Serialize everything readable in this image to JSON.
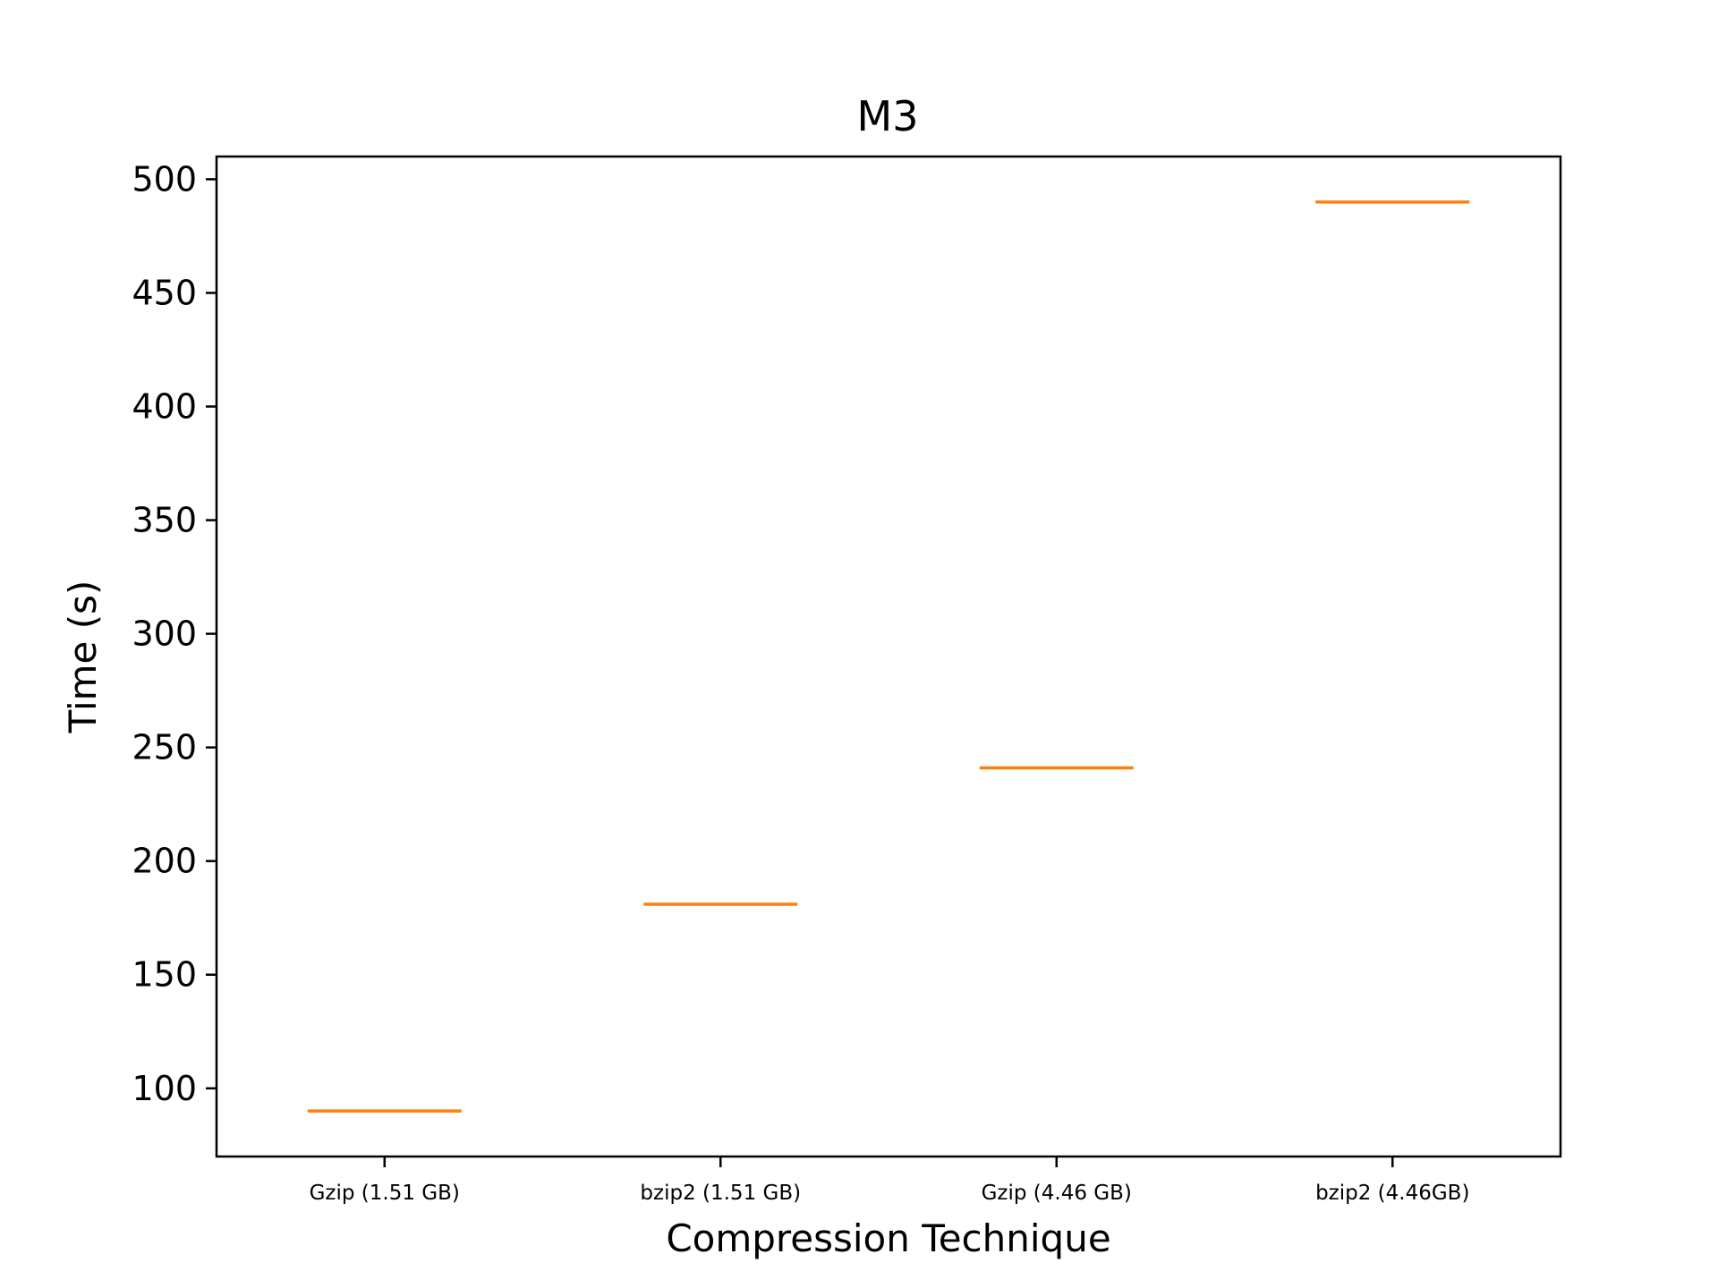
{
  "chart_data": {
    "type": "box",
    "title": "M3",
    "xlabel": "Compression Technique",
    "ylabel": "Time (s)",
    "categories": [
      "Gzip (1.51 GB)",
      "bzip2 (1.51 GB)",
      "Gzip (4.46 GB)",
      "bzip2 (4.46GB)"
    ],
    "values": [
      90,
      181,
      241,
      490
    ],
    "ylim": [
      70,
      510
    ],
    "yticks": [
      100,
      150,
      200,
      250,
      300,
      350,
      400,
      450,
      500
    ],
    "grid": false,
    "legend": "none",
    "colors": {
      "median": "#ff7f0e",
      "axes": "#000000"
    }
  }
}
